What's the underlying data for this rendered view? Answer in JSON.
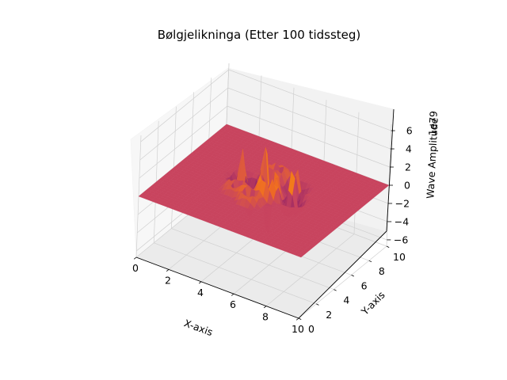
{
  "chart_data": {
    "type": "surface3d",
    "title": "Bølgjelikninga (Etter 100 tidssteg)",
    "xlabel": "X-axis",
    "ylabel": "Y-axis",
    "zlabel": "Wave Amplitude",
    "z_offset_text": "1e79",
    "xlim": [
      0,
      10
    ],
    "ylim": [
      0,
      10
    ],
    "zlim": [
      -6,
      6
    ],
    "x_ticks": [
      "0",
      "2",
      "4",
      "6",
      "8",
      "10"
    ],
    "y_ticks": [
      "0",
      "2",
      "4",
      "6",
      "8",
      "10"
    ],
    "z_ticks": [
      "6",
      "4",
      "2",
      "0",
      "−2",
      "−4",
      "−6"
    ],
    "colormap": "inferno",
    "grid": true,
    "surface": {
      "baseline_z": 0,
      "base_color": "#c8445e",
      "features": [
        {
          "x": 4.7,
          "y": 5.6,
          "amplitude": 5.5
        },
        {
          "x": 5.4,
          "y": 4.8,
          "amplitude": -5.5
        },
        {
          "x": 3.5,
          "y": 5.3,
          "amplitude": 3.5
        },
        {
          "x": 6.6,
          "y": 5.2,
          "amplitude": 3.8
        },
        {
          "x": 4.8,
          "y": 6.9,
          "amplitude": -2.5
        },
        {
          "x": 4.9,
          "y": 3.6,
          "amplitude": -2.5
        },
        {
          "x": 3.8,
          "y": 4.1,
          "amplitude": -2.0
        },
        {
          "x": 6.2,
          "y": 6.4,
          "amplitude": 2.5
        }
      ]
    }
  },
  "colors": {
    "pane_bottom": "#ebebeb",
    "pane_side": "#f2f2f2",
    "pane_back": "#f7f7f7",
    "grid": "#d0d0d0",
    "axis_line": "#000000"
  }
}
